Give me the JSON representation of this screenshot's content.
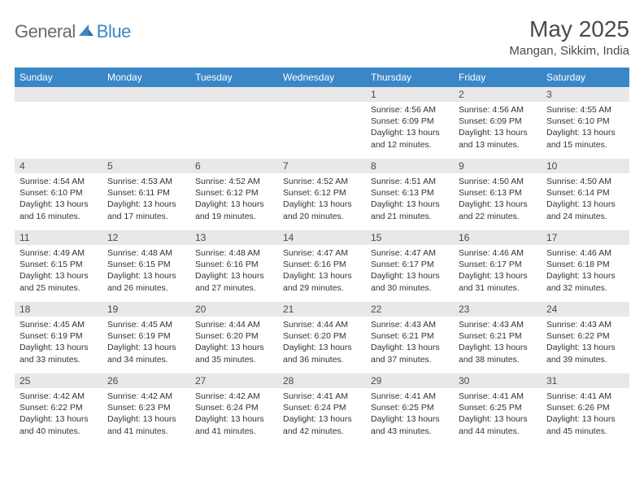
{
  "brand": {
    "part1": "General",
    "part2": "Blue"
  },
  "title": "May 2025",
  "location": "Mangan, Sikkim, India",
  "weekdays": [
    "Sunday",
    "Monday",
    "Tuesday",
    "Wednesday",
    "Thursday",
    "Friday",
    "Saturday"
  ],
  "colors": {
    "header_bg": "#3a87c8",
    "header_text": "#ffffff",
    "daynum_bg": "#e8e8e8",
    "text": "#333333",
    "brand_gray": "#6b6b6b",
    "brand_blue": "#3a87c8"
  },
  "weeks": [
    [
      {
        "n": "",
        "sr": "",
        "ss": "",
        "dl": ""
      },
      {
        "n": "",
        "sr": "",
        "ss": "",
        "dl": ""
      },
      {
        "n": "",
        "sr": "",
        "ss": "",
        "dl": ""
      },
      {
        "n": "",
        "sr": "",
        "ss": "",
        "dl": ""
      },
      {
        "n": "1",
        "sr": "Sunrise: 4:56 AM",
        "ss": "Sunset: 6:09 PM",
        "dl": "Daylight: 13 hours and 12 minutes."
      },
      {
        "n": "2",
        "sr": "Sunrise: 4:56 AM",
        "ss": "Sunset: 6:09 PM",
        "dl": "Daylight: 13 hours and 13 minutes."
      },
      {
        "n": "3",
        "sr": "Sunrise: 4:55 AM",
        "ss": "Sunset: 6:10 PM",
        "dl": "Daylight: 13 hours and 15 minutes."
      }
    ],
    [
      {
        "n": "4",
        "sr": "Sunrise: 4:54 AM",
        "ss": "Sunset: 6:10 PM",
        "dl": "Daylight: 13 hours and 16 minutes."
      },
      {
        "n": "5",
        "sr": "Sunrise: 4:53 AM",
        "ss": "Sunset: 6:11 PM",
        "dl": "Daylight: 13 hours and 17 minutes."
      },
      {
        "n": "6",
        "sr": "Sunrise: 4:52 AM",
        "ss": "Sunset: 6:12 PM",
        "dl": "Daylight: 13 hours and 19 minutes."
      },
      {
        "n": "7",
        "sr": "Sunrise: 4:52 AM",
        "ss": "Sunset: 6:12 PM",
        "dl": "Daylight: 13 hours and 20 minutes."
      },
      {
        "n": "8",
        "sr": "Sunrise: 4:51 AM",
        "ss": "Sunset: 6:13 PM",
        "dl": "Daylight: 13 hours and 21 minutes."
      },
      {
        "n": "9",
        "sr": "Sunrise: 4:50 AM",
        "ss": "Sunset: 6:13 PM",
        "dl": "Daylight: 13 hours and 22 minutes."
      },
      {
        "n": "10",
        "sr": "Sunrise: 4:50 AM",
        "ss": "Sunset: 6:14 PM",
        "dl": "Daylight: 13 hours and 24 minutes."
      }
    ],
    [
      {
        "n": "11",
        "sr": "Sunrise: 4:49 AM",
        "ss": "Sunset: 6:15 PM",
        "dl": "Daylight: 13 hours and 25 minutes."
      },
      {
        "n": "12",
        "sr": "Sunrise: 4:48 AM",
        "ss": "Sunset: 6:15 PM",
        "dl": "Daylight: 13 hours and 26 minutes."
      },
      {
        "n": "13",
        "sr": "Sunrise: 4:48 AM",
        "ss": "Sunset: 6:16 PM",
        "dl": "Daylight: 13 hours and 27 minutes."
      },
      {
        "n": "14",
        "sr": "Sunrise: 4:47 AM",
        "ss": "Sunset: 6:16 PM",
        "dl": "Daylight: 13 hours and 29 minutes."
      },
      {
        "n": "15",
        "sr": "Sunrise: 4:47 AM",
        "ss": "Sunset: 6:17 PM",
        "dl": "Daylight: 13 hours and 30 minutes."
      },
      {
        "n": "16",
        "sr": "Sunrise: 4:46 AM",
        "ss": "Sunset: 6:17 PM",
        "dl": "Daylight: 13 hours and 31 minutes."
      },
      {
        "n": "17",
        "sr": "Sunrise: 4:46 AM",
        "ss": "Sunset: 6:18 PM",
        "dl": "Daylight: 13 hours and 32 minutes."
      }
    ],
    [
      {
        "n": "18",
        "sr": "Sunrise: 4:45 AM",
        "ss": "Sunset: 6:19 PM",
        "dl": "Daylight: 13 hours and 33 minutes."
      },
      {
        "n": "19",
        "sr": "Sunrise: 4:45 AM",
        "ss": "Sunset: 6:19 PM",
        "dl": "Daylight: 13 hours and 34 minutes."
      },
      {
        "n": "20",
        "sr": "Sunrise: 4:44 AM",
        "ss": "Sunset: 6:20 PM",
        "dl": "Daylight: 13 hours and 35 minutes."
      },
      {
        "n": "21",
        "sr": "Sunrise: 4:44 AM",
        "ss": "Sunset: 6:20 PM",
        "dl": "Daylight: 13 hours and 36 minutes."
      },
      {
        "n": "22",
        "sr": "Sunrise: 4:43 AM",
        "ss": "Sunset: 6:21 PM",
        "dl": "Daylight: 13 hours and 37 minutes."
      },
      {
        "n": "23",
        "sr": "Sunrise: 4:43 AM",
        "ss": "Sunset: 6:21 PM",
        "dl": "Daylight: 13 hours and 38 minutes."
      },
      {
        "n": "24",
        "sr": "Sunrise: 4:43 AM",
        "ss": "Sunset: 6:22 PM",
        "dl": "Daylight: 13 hours and 39 minutes."
      }
    ],
    [
      {
        "n": "25",
        "sr": "Sunrise: 4:42 AM",
        "ss": "Sunset: 6:22 PM",
        "dl": "Daylight: 13 hours and 40 minutes."
      },
      {
        "n": "26",
        "sr": "Sunrise: 4:42 AM",
        "ss": "Sunset: 6:23 PM",
        "dl": "Daylight: 13 hours and 41 minutes."
      },
      {
        "n": "27",
        "sr": "Sunrise: 4:42 AM",
        "ss": "Sunset: 6:24 PM",
        "dl": "Daylight: 13 hours and 41 minutes."
      },
      {
        "n": "28",
        "sr": "Sunrise: 4:41 AM",
        "ss": "Sunset: 6:24 PM",
        "dl": "Daylight: 13 hours and 42 minutes."
      },
      {
        "n": "29",
        "sr": "Sunrise: 4:41 AM",
        "ss": "Sunset: 6:25 PM",
        "dl": "Daylight: 13 hours and 43 minutes."
      },
      {
        "n": "30",
        "sr": "Sunrise: 4:41 AM",
        "ss": "Sunset: 6:25 PM",
        "dl": "Daylight: 13 hours and 44 minutes."
      },
      {
        "n": "31",
        "sr": "Sunrise: 4:41 AM",
        "ss": "Sunset: 6:26 PM",
        "dl": "Daylight: 13 hours and 45 minutes."
      }
    ]
  ]
}
